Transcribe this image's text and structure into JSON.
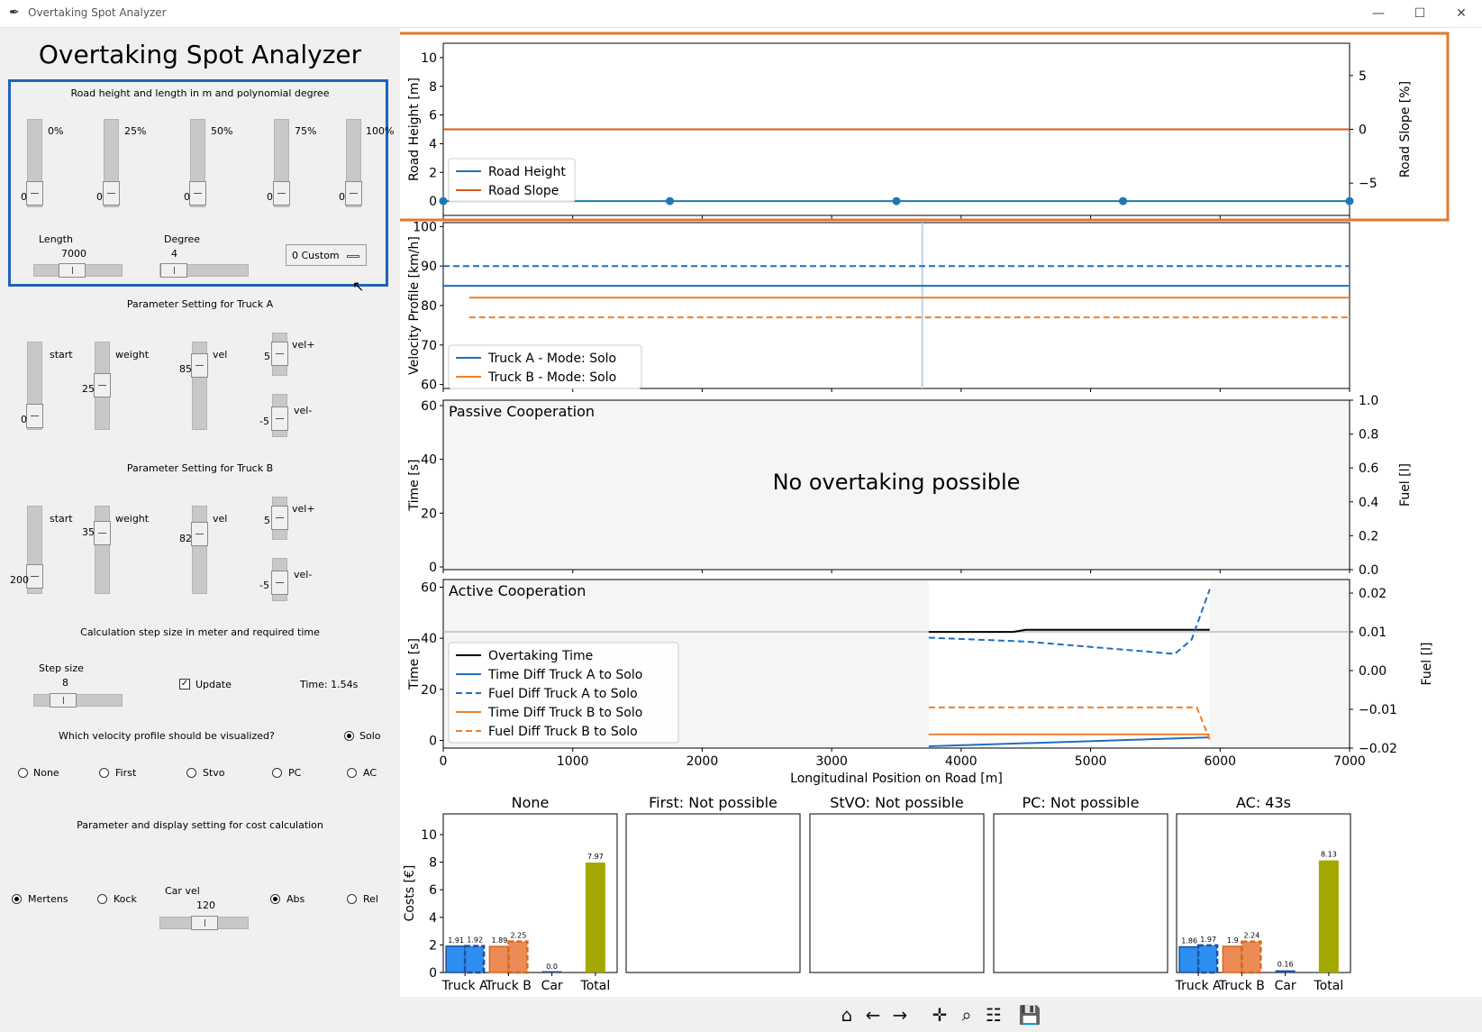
{
  "window": {
    "title": "Overtaking Spot Analyzer",
    "icon": "feather-icon"
  },
  "app_title": "Overtaking Spot Analyzer",
  "road": {
    "heading": "Road height and length in m and polynomial degree",
    "sliders": [
      {
        "pct": "0%",
        "value": "0"
      },
      {
        "pct": "25%",
        "value": "0"
      },
      {
        "pct": "50%",
        "value": "0"
      },
      {
        "pct": "75%",
        "value": "0"
      },
      {
        "pct": "100%",
        "value": "0"
      }
    ],
    "length_label": "Length",
    "length_value": "7000",
    "degree_label": "Degree",
    "degree_value": "4",
    "dropdown_value": "0 Custom"
  },
  "truck_a": {
    "heading": "Parameter Setting for Truck A",
    "start_label": "start",
    "start_value": "0",
    "weight_label": "weight",
    "weight_value": "25",
    "vel_label": "vel",
    "vel_value": "85",
    "velp_label": "vel+",
    "velp_value": "5",
    "velm_label": "vel-",
    "velm_value": "-5"
  },
  "truck_b": {
    "heading": "Parameter Setting for Truck B",
    "start_label": "start",
    "start_value": "200",
    "weight_label": "weight",
    "weight_value": "35",
    "vel_label": "vel",
    "vel_value": "82",
    "velp_label": "vel+",
    "velp_value": "5",
    "velm_label": "vel-",
    "velm_value": "-5"
  },
  "calc": {
    "heading": "Calculation step size in meter and required time",
    "step_label": "Step size",
    "step_value": "8",
    "update_label": "Update",
    "update_checked": true,
    "time_text": "Time: 1.54s"
  },
  "profile": {
    "heading": "Which velocity profile should be visualized?",
    "options": [
      "Solo",
      "None",
      "First",
      "Stvo",
      "PC",
      "AC"
    ],
    "selected": "Solo"
  },
  "cost": {
    "heading": "Parameter and display setting for cost calculation",
    "model_options": [
      "Mertens",
      "Kock"
    ],
    "model_selected": "Mertens",
    "car_vel_label": "Car vel",
    "car_vel_value": "120",
    "display_options": [
      "Abs",
      "Rel"
    ],
    "display_selected": "Abs"
  },
  "chart_data": [
    {
      "type": "line",
      "id": "road",
      "ylabel": "Road Height [m]",
      "y2label": "Road Slope [%]",
      "xlim": [
        0,
        7000
      ],
      "ylim": [
        -1,
        11
      ],
      "y2lim": [
        -8,
        8
      ],
      "yticks": [
        0,
        2,
        4,
        6,
        8,
        10
      ],
      "y2ticks": [
        -5,
        0,
        5
      ],
      "series": [
        {
          "name": "Road Height",
          "color": "#1f77b4",
          "x": [
            0,
            7000
          ],
          "y": [
            0,
            0
          ],
          "markers_x": [
            0,
            1750,
            3500,
            5250,
            7000
          ]
        },
        {
          "name": "Road Slope",
          "color": "#d45a12",
          "axis": "right",
          "x": [
            0,
            7000
          ],
          "y": [
            0,
            0
          ]
        }
      ]
    },
    {
      "type": "line",
      "id": "velocity",
      "ylabel": "Velocity Profile [km/h]",
      "xlim": [
        0,
        7000
      ],
      "ylim": [
        59,
        101
      ],
      "yticks": [
        60,
        70,
        80,
        90,
        100
      ],
      "vline_x": 3700,
      "series": [
        {
          "name": "Truck A - Mode: Solo",
          "color": "#1f6fbf",
          "x": [
            0,
            7000
          ],
          "y": [
            85,
            85
          ]
        },
        {
          "name": "Truck B - Mode: Solo",
          "color": "#ef7f2a",
          "x": [
            200,
            7000
          ],
          "y": [
            82,
            82
          ]
        },
        {
          "name": "",
          "color": "#1f6fbf",
          "dashed": true,
          "x": [
            0,
            7000
          ],
          "y": [
            90,
            90
          ]
        },
        {
          "name": "",
          "color": "#ef7f2a",
          "dashed": true,
          "x": [
            200,
            7000
          ],
          "y": [
            77,
            77
          ]
        }
      ]
    },
    {
      "type": "line",
      "id": "passive",
      "title": "Passive Cooperation",
      "annotation": "No overtaking possible",
      "ylabel": "Time [s]",
      "y2label": "Fuel [l]",
      "xlim": [
        0,
        7000
      ],
      "ylim": [
        -1,
        62
      ],
      "yticks": [
        0,
        20,
        40,
        60
      ],
      "y2lim": [
        0,
        1
      ],
      "y2ticks": [
        "0.0",
        "0.2",
        "0.4",
        "0.6",
        "0.8",
        "1.0"
      ],
      "series": []
    },
    {
      "type": "line",
      "id": "active",
      "title": "Active Cooperation",
      "ylabel": "Time [s]",
      "y2label": "Fuel [l]",
      "xlabel": "Longitudinal Position on Road [m]",
      "xlim": [
        0,
        7000
      ],
      "ylim": [
        -3,
        63
      ],
      "yticks": [
        0,
        20,
        40,
        60
      ],
      "y2lim": [
        -0.02,
        0.0235
      ],
      "y2ticks": [
        "0.02",
        "0.01",
        "0.00",
        "−0.01",
        "−0.02"
      ],
      "xticks": [
        0,
        1000,
        2000,
        3000,
        4000,
        5000,
        6000,
        7000
      ],
      "hline_y2": 0.01,
      "active_region": [
        3750,
        5920
      ],
      "series": [
        {
          "name": "Overtaking Time",
          "color": "#000000",
          "axis": "left",
          "x": [
            3750,
            4400,
            4500,
            5920
          ],
          "y": [
            42.5,
            42.5,
            43.3,
            43.3
          ]
        },
        {
          "name": "Time Diff Truck A to Solo",
          "color": "#1f6fbf",
          "axis": "left",
          "x": [
            3750,
            5920
          ],
          "y": [
            -2.3,
            1.2
          ]
        },
        {
          "name": "Fuel Diff Truck A to Solo",
          "color": "#1f6fbf",
          "axis": "right",
          "dashed": true,
          "x": [
            3750,
            4500,
            5650,
            5780,
            5920
          ],
          "y": [
            0.0085,
            0.0075,
            0.0043,
            0.008,
            0.021
          ]
        },
        {
          "name": "Time Diff Truck B to Solo",
          "color": "#ef7f2a",
          "axis": "left",
          "x": [
            3750,
            5920
          ],
          "y": [
            2.4,
            2.4
          ]
        },
        {
          "name": "Fuel Diff Truck B to Solo",
          "color": "#ef7f2a",
          "axis": "right",
          "dashed": true,
          "x": [
            3750,
            5820,
            5920
          ],
          "y": [
            -0.0095,
            -0.0095,
            -0.0178
          ]
        }
      ]
    },
    {
      "type": "bar",
      "id": "costs",
      "ylabel": "Costs [€]",
      "ylim": [
        0,
        11.5
      ],
      "yticks": [
        0,
        2,
        4,
        6,
        8,
        10
      ],
      "panels": [
        {
          "title": "None",
          "bars": [
            {
              "cat": "Truck A",
              "a": 1.91,
              "b": 1.92,
              "color": "#2d8ef0",
              "edge": "#1f4f9a",
              "la": "1.91",
              "lb": "1.92"
            },
            {
              "cat": "Truck B",
              "a": 1.89,
              "b": 2.25,
              "color": "#ec8b55",
              "edge": "#d46a1e",
              "la": "1.89",
              "lb": "2.25"
            },
            {
              "cat": "Car",
              "single": 0.0,
              "color": "#1f4f9a",
              "l": "0.0"
            },
            {
              "cat": "Total",
              "single": 7.97,
              "color": "#a3a800",
              "l": "7.97"
            }
          ]
        },
        {
          "title": "First: Not possible",
          "bars": []
        },
        {
          "title": "StVO: Not possible",
          "bars": []
        },
        {
          "title": "PC: Not possible",
          "bars": []
        },
        {
          "title": "AC: 43s",
          "bars": [
            {
              "cat": "Truck A",
              "a": 1.86,
              "b": 1.97,
              "color": "#2d8ef0",
              "edge": "#1f4f9a",
              "la": "1.86",
              "lb": "1.97"
            },
            {
              "cat": "Truck B",
              "a": 1.9,
              "b": 2.24,
              "color": "#ec8b55",
              "edge": "#d46a1e",
              "la": "1.9",
              "lb": "2.24"
            },
            {
              "cat": "Car",
              "single": 0.16,
              "color": "#1f4f9a",
              "l": "0.16"
            },
            {
              "cat": "Total",
              "single": 8.13,
              "color": "#a3a800",
              "l": "8.13"
            }
          ]
        }
      ]
    }
  ],
  "highlight": {
    "road_frame_color": "#e07a2e",
    "sidebar_frame_color": "#1f63b8"
  },
  "toolbar": [
    "home-icon",
    "back-icon",
    "forward-icon",
    "pan-icon",
    "zoom-icon",
    "configure-icon",
    "save-icon"
  ]
}
